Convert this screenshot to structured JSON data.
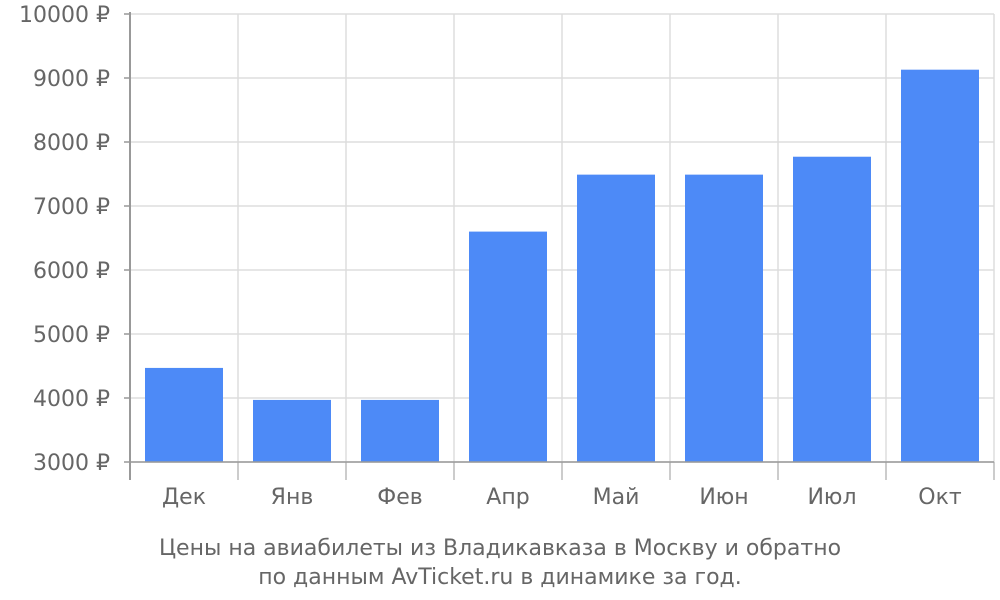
{
  "chart_data": {
    "type": "bar",
    "categories": [
      "Дек",
      "Янв",
      "Фев",
      "Апр",
      "Май",
      "Июн",
      "Июл",
      "Окт"
    ],
    "values": [
      4470,
      3970,
      3970,
      6600,
      7490,
      7490,
      7770,
      9130
    ],
    "ylim": [
      3000,
      10000
    ],
    "yticks": [
      3000,
      4000,
      5000,
      6000,
      7000,
      8000,
      9000,
      10000
    ],
    "ytick_labels": [
      "3000 ₽",
      "4000 ₽",
      "5000 ₽",
      "6000 ₽",
      "7000 ₽",
      "8000 ₽",
      "9000 ₽",
      "10000 ₽"
    ],
    "grid": true,
    "bar_color": "#4d8af7",
    "caption": {
      "line1": "Цены на авиабилеты из Владикавказа в Москву и обратно",
      "line2": "по данным AvTicket.ru в динамике за год."
    }
  }
}
